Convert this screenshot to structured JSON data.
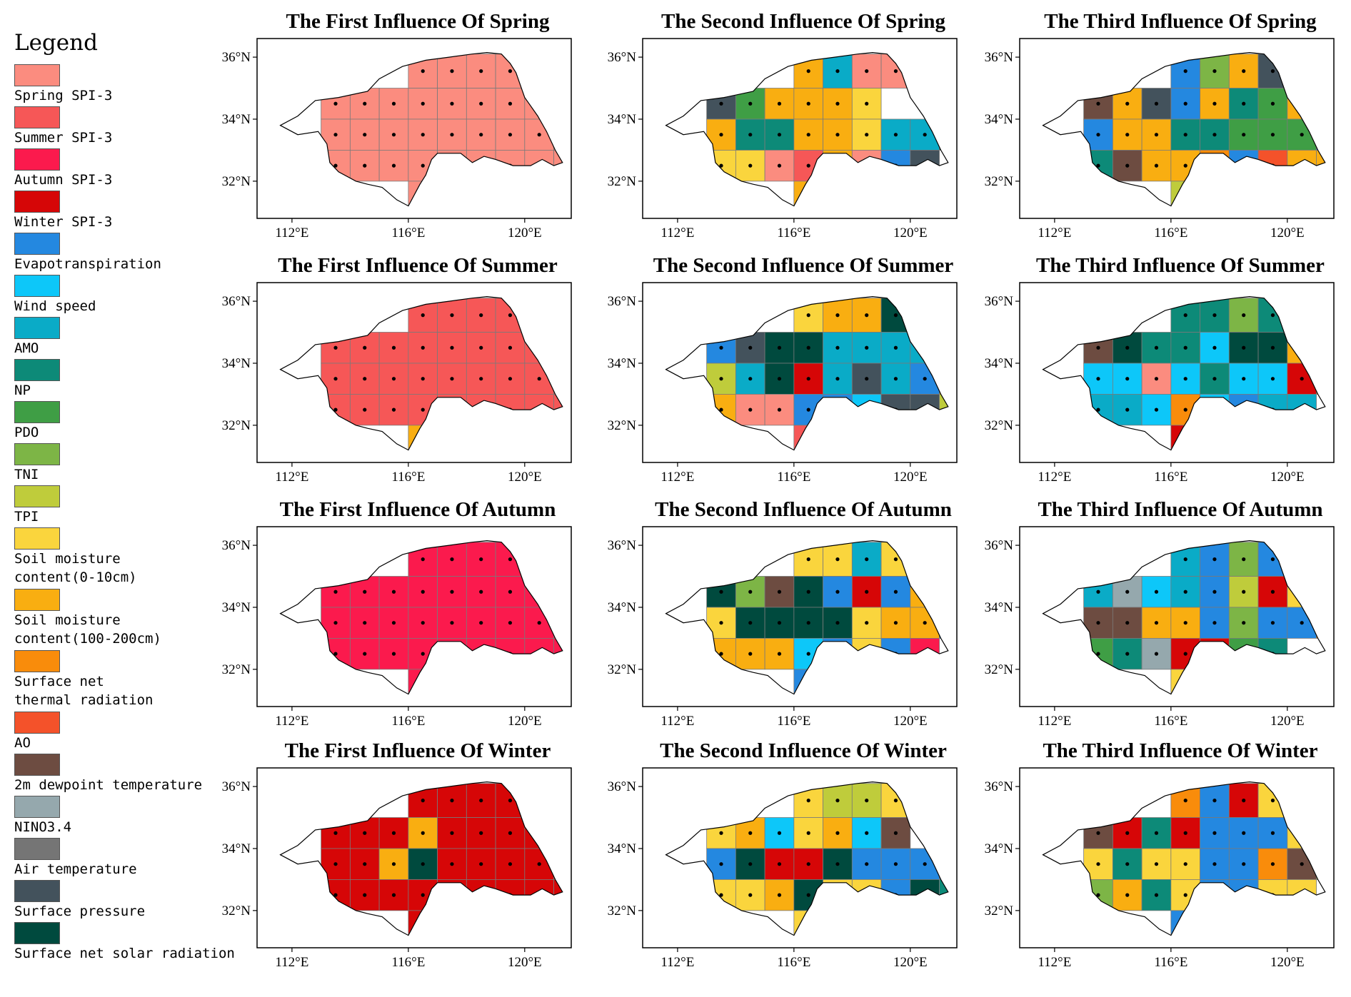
{
  "legend": {
    "title": "Legend",
    "items": [
      {
        "key": "spring",
        "label": "Spring SPI-3",
        "color": "#FB8C7F"
      },
      {
        "key": "summer",
        "label": "Summer SPI-3",
        "color": "#F65757"
      },
      {
        "key": "autumn",
        "label": "Autumn SPI-3",
        "color": "#FB1A4D"
      },
      {
        "key": "winter",
        "label": "Winter SPI-3",
        "color": "#D60607"
      },
      {
        "key": "et",
        "label": "Evapotranspiration",
        "color": "#2488E0"
      },
      {
        "key": "ws",
        "label": "Wind speed",
        "color": "#0DC7F9"
      },
      {
        "key": "amo",
        "label": "AMO",
        "color": "#0AABC7"
      },
      {
        "key": "np",
        "label": "NP",
        "color": "#0D8A78"
      },
      {
        "key": "pdo",
        "label": "PDO",
        "color": "#3F9E45"
      },
      {
        "key": "tni",
        "label": "TNI",
        "color": "#7DB546"
      },
      {
        "key": "tpi",
        "label": "TPI",
        "color": "#BFCC3B"
      },
      {
        "key": "sm1",
        "label": "Soil moisture\ncontent(0-10cm)",
        "color": "#FAD53D"
      },
      {
        "key": "sm2",
        "label": "Soil moisture\ncontent(100-200cm)",
        "color": "#F9AE11"
      },
      {
        "key": "sntr",
        "label": "Surface net\nthermal radiation",
        "color": "#F98C0B"
      },
      {
        "key": "ao",
        "label": "AO",
        "color": "#F4522A"
      },
      {
        "key": "dew",
        "label": "2m dewpoint temperature",
        "color": "#6D4C41"
      },
      {
        "key": "nino",
        "label": "NINO3.4",
        "color": "#95A8AD"
      },
      {
        "key": "at",
        "label": "Air temperature",
        "color": "#757575"
      },
      {
        "key": "sp",
        "label": "Surface pressure",
        "color": "#43525C"
      },
      {
        "key": "snsr",
        "label": "Surface net solar radiation",
        "color": "#004A3E"
      }
    ]
  },
  "axes": {
    "lon_ticks": [
      "112°E",
      "116°E",
      "120°E"
    ],
    "lat_ticks": [
      "32°N",
      "34°N",
      "36°N"
    ]
  },
  "panels": [
    {
      "title": "The First Influence Of Spring",
      "grid": [
        "...SSSSS.",
        "SSSSSSSSS",
        "SSSSSSSSS",
        "SSSSSSSSS",
        "...S....."
      ]
    },
    {
      "title": "The Second Influence Of Spring",
      "grid": [
        "...LMSS..",
        "KOLLLT...",
        "LNNLLTMMX",
        "TTSRLSEK.",
        "...L....."
      ]
    },
    {
      "title": "The Third Influence Of Spring",
      "grid": [
        "...EJLKW.",
        "DLPELNOLA",
        "ELLNNOOOE",
        "NDLLAEHLL",
        "...I....."
      ]
    },
    {
      "title": "The First Influence Of Summer",
      "grid": [
        "...RRRRR.",
        "RRRRRRRRR",
        "RRRRRRRRR",
        "RRRRRRRRR",
        "...L....."
      ]
    },
    {
      "title": "The Second Influence Of Summer",
      "grid": [
        "...TLLXX.",
        "EKXXMMMM.",
        "IMXWMKMEL",
        "LSSEEVKKI",
        "...R....."
      ]
    },
    {
      "title": "The Third Influence Of Summer",
      "grid": [
        "...NNJNN.",
        "DXNNVXXLL",
        "VVSVNVVWL",
        "MMVAVEMM.",
        "...W....."
      ]
    },
    {
      "title": "The First Influence Of Autumn",
      "grid": [
        "...FFFFF.",
        "FFFFFFFFF",
        "FFFFFFFFF",
        "FFFFFFFFF",
        "...F....."
      ]
    },
    {
      "title": "The Second Influence Of Autumn",
      "grid": [
        "...TTMTL.",
        "XJDXEWEL.",
        "TXXXXTLLE",
        "LLLVETEF.",
        "...E....."
      ]
    },
    {
      "title": "The Third Influence Of Autumn",
      "grid": [
        "...MEJEWT",
        "MZVMEIWTA",
        "DDLLEJEEA",
        "ONZWWON..",
        "...T....."
      ]
    },
    {
      "title": "The First Influence Of Winter",
      "grid": [
        "...WWWWW.",
        "WWWLWWWWW",
        "WWLXWWWWW",
        "WWWWWWWWW",
        "...W....."
      ]
    },
    {
      "title": "The Second Influence Of Winter",
      "grid": [
        "...TIIT..",
        "TLVTLVD..",
        "EXGGXEEEE",
        "TTLXTTEXN",
        "...T....."
      ]
    },
    {
      "title": "The Third Influence Of Winter",
      "grid": [
        "...AEGTI.",
        "DWNGEEET.",
        "TNTTEEADI",
        "JLNTEETT.",
        "...E....."
      ]
    }
  ],
  "code_colors": {
    "S": "#FB8C7F",
    "R": "#F65757",
    "F": "#FB1A4D",
    "G": "#D60607",
    "W": "#D60607",
    "E": "#2488E0",
    "V": "#0DC7F9",
    "M": "#0AABC7",
    "N": "#0D8A78",
    "O": "#3F9E45",
    "J": "#7DB546",
    "I": "#BFCC3B",
    "T": "#FAD53D",
    "L": "#F9AE11",
    "A": "#F98C0B",
    "H": "#F4522A",
    "D": "#6D4C41",
    "Z": "#95A8AD",
    "K": "#43525C",
    "X": "#004A3E",
    "P": "#43525C",
    "Y": "#757575"
  }
}
